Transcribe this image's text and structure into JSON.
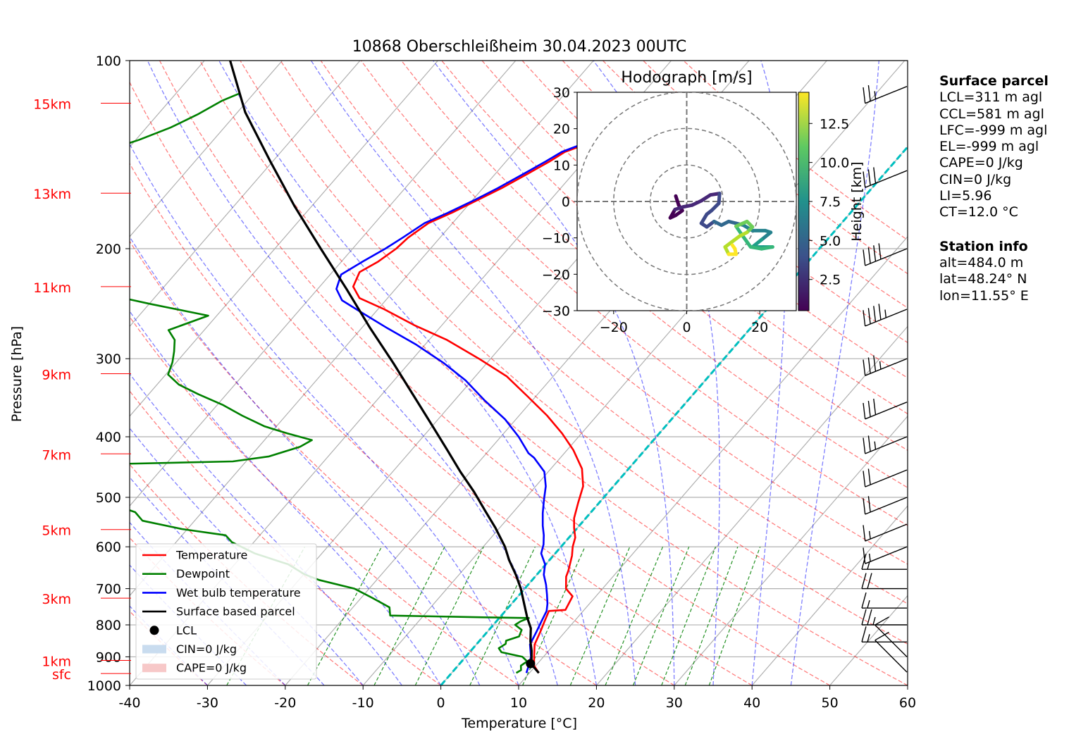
{
  "chart_data": {
    "type": "skew-t",
    "title": "10868 Oberschleißheim 30.04.2023 00UTC",
    "xlabel": "Temperature [°C]",
    "ylabel": "Pressure [hPa]",
    "xlim": [
      -40,
      60
    ],
    "ylim": [
      1000,
      100
    ],
    "x_ticks": [
      -40,
      -30,
      -20,
      -10,
      0,
      10,
      20,
      30,
      40,
      50,
      60
    ],
    "y_ticks": [
      100,
      200,
      300,
      400,
      500,
      600,
      700,
      800,
      900,
      1000
    ],
    "height_labels": [
      {
        "label": "sfc",
        "p": 957
      },
      {
        "label": "1km",
        "p": 912
      },
      {
        "label": "3km",
        "p": 725
      },
      {
        "label": "5km",
        "p": 563
      },
      {
        "label": "7km",
        "p": 426
      },
      {
        "label": "9km",
        "p": 317
      },
      {
        "label": "11km",
        "p": 230
      },
      {
        "label": "13km",
        "p": 163
      },
      {
        "label": "15km",
        "p": 117
      }
    ],
    "grid": true,
    "legend_position": "lower-left",
    "series": [
      {
        "name": "Temperature",
        "color": "#ff0000",
        "points": [
          [
            11.2,
            955
          ],
          [
            9.8,
            930
          ],
          [
            8.8,
            900
          ],
          [
            7.5,
            860
          ],
          [
            6.8,
            820
          ],
          [
            6.2,
            790
          ],
          [
            5.6,
            760
          ],
          [
            7.6,
            757
          ],
          [
            7.0,
            720
          ],
          [
            5.3,
            700
          ],
          [
            4.0,
            670
          ],
          [
            3.6,
            655
          ],
          [
            2.4,
            620
          ],
          [
            1.5,
            600
          ],
          [
            0.8,
            580
          ],
          [
            -0.4,
            560
          ],
          [
            -1.5,
            540
          ],
          [
            -2.7,
            510
          ],
          [
            -3.9,
            480
          ],
          [
            -6.0,
            450
          ],
          [
            -9.2,
            420
          ],
          [
            -12.5,
            395
          ],
          [
            -16.4,
            370
          ],
          [
            -21.0,
            345
          ],
          [
            -26.0,
            320
          ],
          [
            -31.5,
            300
          ],
          [
            -37.7,
            280
          ],
          [
            -43.6,
            265
          ],
          [
            -49.2,
            250
          ],
          [
            -53.6,
            240
          ],
          [
            -55.7,
            230
          ],
          [
            -56.5,
            218
          ],
          [
            -55.3,
            210
          ],
          [
            -54.4,
            200
          ],
          [
            -54.1,
            192
          ],
          [
            -53.1,
            182
          ],
          [
            -51.2,
            175
          ],
          [
            -49.3,
            167
          ],
          [
            -47.6,
            160
          ],
          [
            -45.9,
            152
          ],
          [
            -44.4,
            145
          ],
          [
            -43.5,
            140
          ],
          [
            -41.6,
            136
          ],
          [
            -40.2,
            131
          ],
          [
            -39.9,
            127
          ],
          [
            -39.5,
            122
          ],
          [
            -39.3,
            117
          ]
        ]
      },
      {
        "name": "Dewpoint",
        "color": "#008000",
        "points": [
          [
            8.3,
            955
          ],
          [
            8.6,
            945
          ],
          [
            8.1,
            930
          ],
          [
            8.4,
            915
          ],
          [
            7.3,
            900
          ],
          [
            4.1,
            885
          ],
          [
            3.3,
            872
          ],
          [
            3.7,
            858
          ],
          [
            3.4,
            848
          ],
          [
            4.6,
            835
          ],
          [
            4.2,
            815
          ],
          [
            2.8,
            800
          ],
          [
            3.1,
            790
          ],
          [
            3.8,
            780
          ],
          [
            -2.2,
            778
          ],
          [
            -14.3,
            773
          ],
          [
            -15.3,
            750
          ],
          [
            -18.6,
            724
          ],
          [
            -21.9,
            700
          ],
          [
            -27.4,
            678
          ],
          [
            -29.9,
            664
          ],
          [
            -33.1,
            640
          ],
          [
            -38.6,
            615
          ],
          [
            -42.8,
            590
          ],
          [
            -44.4,
            575
          ],
          [
            -50.7,
            562
          ],
          [
            -56.7,
            545
          ],
          [
            -58.6,
            528
          ],
          [
            -63.2,
            510
          ],
          [
            -68.3,
            495
          ],
          [
            -70.5,
            480
          ],
          [
            -72.6,
            466
          ],
          [
            -73.8,
            455
          ],
          [
            -72.5,
            444
          ],
          [
            -51.7,
            438
          ],
          [
            -47.6,
            430
          ],
          [
            -44.7,
            415
          ],
          [
            -43.9,
            405
          ],
          [
            -47.8,
            395
          ],
          [
            -51.5,
            385
          ],
          [
            -55.6,
            370
          ],
          [
            -59.2,
            356
          ],
          [
            -63.6,
            342
          ],
          [
            -67.2,
            330
          ],
          [
            -69.7,
            318
          ],
          [
            -70.5,
            304
          ],
          [
            -71.5,
            292
          ],
          [
            -72.7,
            280
          ],
          [
            -74.6,
            270
          ],
          [
            -71.1,
            256
          ],
          [
            -80.0,
            245
          ],
          [
            -85.5,
            238
          ],
          [
            -88.8,
            228
          ],
          [
            -91.0,
            220
          ],
          [
            -91.2,
            212
          ],
          [
            -91.1,
            204
          ],
          [
            -92.7,
            196
          ],
          [
            -95.7,
            188
          ],
          [
            -101.6,
            180
          ],
          [
            -106.4,
            174
          ],
          [
            -109.9,
            167
          ],
          [
            -108.9,
            160
          ],
          [
            -108.5,
            153
          ],
          [
            -106.4,
            146
          ],
          [
            -103.0,
            140
          ],
          [
            -99.6,
            134
          ],
          [
            -96.9,
            128
          ],
          [
            -94.9,
            122
          ],
          [
            -93.3,
            116
          ],
          [
            -91.9,
            113
          ]
        ]
      },
      {
        "name": "Wet bulb temperature",
        "color": "#0000ff",
        "points": [
          [
            9.6,
            955
          ],
          [
            9.1,
            930
          ],
          [
            8.4,
            900
          ],
          [
            6.9,
            860
          ],
          [
            6.3,
            820
          ],
          [
            5.8,
            790
          ],
          [
            5.3,
            760
          ],
          [
            4.6,
            740
          ],
          [
            3.5,
            715
          ],
          [
            2.3,
            690
          ],
          [
            0.9,
            665
          ],
          [
            -0.1,
            640
          ],
          [
            -1.8,
            615
          ],
          [
            -2.5,
            595
          ],
          [
            -3.5,
            575
          ],
          [
            -4.7,
            555
          ],
          [
            -6.1,
            530
          ],
          [
            -7.4,
            505
          ],
          [
            -8.7,
            480
          ],
          [
            -10.5,
            455
          ],
          [
            -13.4,
            432
          ],
          [
            -14.6,
            425
          ],
          [
            -17.7,
            400
          ],
          [
            -21.4,
            375
          ],
          [
            -26.1,
            350
          ],
          [
            -30.8,
            325
          ],
          [
            -35.5,
            305
          ],
          [
            -41.1,
            285
          ],
          [
            -46.7,
            268
          ],
          [
            -52.1,
            252
          ],
          [
            -55.6,
            242
          ],
          [
            -57.6,
            232
          ],
          [
            -58.6,
            220
          ],
          [
            -57.3,
            210
          ],
          [
            -55.8,
            200
          ],
          [
            -54.8,
            192
          ],
          [
            -53.6,
            182
          ],
          [
            -51.7,
            175
          ],
          [
            -49.7,
            167
          ],
          [
            -48.1,
            160
          ],
          [
            -46.4,
            152
          ],
          [
            -44.9,
            145
          ],
          [
            -43.9,
            140
          ],
          [
            -42.1,
            136
          ],
          [
            -40.7,
            131
          ],
          [
            -40.5,
            127
          ],
          [
            -40.1,
            122
          ],
          [
            -39.9,
            117
          ]
        ]
      },
      {
        "name": "Surface based parcel",
        "color": "#000000",
        "points": [
          [
            11.2,
            955
          ],
          [
            9.6,
            930
          ],
          [
            8.8,
            910
          ],
          [
            7.8,
            880
          ],
          [
            6.6,
            850
          ],
          [
            5.2,
            810
          ],
          [
            3.6,
            780
          ],
          [
            1.6,
            740
          ],
          [
            -0.5,
            700
          ],
          [
            -2.7,
            665
          ],
          [
            -5.2,
            630
          ],
          [
            -7.2,
            600
          ],
          [
            -10.5,
            560
          ],
          [
            -13.8,
            525
          ],
          [
            -17.3,
            490
          ],
          [
            -21.3,
            455
          ],
          [
            -25.4,
            420
          ],
          [
            -29.9,
            385
          ],
          [
            -35.6,
            345
          ],
          [
            -42.0,
            305
          ],
          [
            -48.9,
            268
          ],
          [
            -56.3,
            232
          ],
          [
            -64.1,
            200
          ],
          [
            -72.2,
            171
          ],
          [
            -80.3,
            145
          ],
          [
            -89.0,
            121
          ],
          [
            -96.7,
            100
          ]
        ]
      }
    ],
    "lcl": {
      "label": "LCL",
      "t": 9.1,
      "p": 923
    },
    "legend": [
      {
        "label": "Temperature",
        "color": "#ff0000",
        "kind": "line"
      },
      {
        "label": "Dewpoint",
        "color": "#008000",
        "kind": "line"
      },
      {
        "label": "Wet bulb temperature",
        "color": "#0000ff",
        "kind": "line"
      },
      {
        "label": "Surface based parcel",
        "color": "#000000",
        "kind": "line"
      },
      {
        "label": "LCL",
        "color": "#000000",
        "kind": "dot"
      },
      {
        "label": "CIN=0 J/kg",
        "color": "#c9dcef",
        "kind": "patch"
      },
      {
        "label": "CAPE=0 J/kg",
        "color": "#f7c8c8",
        "kind": "patch"
      }
    ],
    "wind_barbs": [
      {
        "p": 952,
        "speed_kt": 10,
        "direction": "sw"
      },
      {
        "p": 900,
        "speed_kt": 10,
        "direction": "sw"
      },
      {
        "p": 852,
        "speed_kt": 15,
        "direction": "w"
      },
      {
        "p": 800,
        "speed_kt": 25,
        "direction": "w"
      },
      {
        "p": 752,
        "speed_kt": 15,
        "direction": "w"
      },
      {
        "p": 700,
        "speed_kt": 20,
        "direction": "w"
      },
      {
        "p": 652,
        "speed_kt": 15,
        "direction": "w"
      },
      {
        "p": 600,
        "speed_kt": 15,
        "direction": "wnw"
      },
      {
        "p": 552,
        "speed_kt": 15,
        "direction": "wnw"
      },
      {
        "p": 500,
        "speed_kt": 20,
        "direction": "wnw"
      },
      {
        "p": 452,
        "speed_kt": 20,
        "direction": "wnw"
      },
      {
        "p": 400,
        "speed_kt": 25,
        "direction": "wnw"
      },
      {
        "p": 352,
        "speed_kt": 30,
        "direction": "wnw"
      },
      {
        "p": 300,
        "speed_kt": 35,
        "direction": "wnw"
      },
      {
        "p": 250,
        "speed_kt": 45,
        "direction": "wnw"
      },
      {
        "p": 200,
        "speed_kt": 40,
        "direction": "wnw"
      },
      {
        "p": 150,
        "speed_kt": 30,
        "direction": "wnw"
      },
      {
        "p": 110,
        "speed_kt": 25,
        "direction": "wnw"
      }
    ],
    "hodograph": {
      "title": "Hodograph [m/s]",
      "xlim": [
        -30,
        30
      ],
      "ylim": [
        -30,
        30
      ],
      "ticks": [
        -30,
        -20,
        -10,
        0,
        10,
        20,
        30
      ],
      "x_ticks": [
        -20,
        0,
        20
      ],
      "rings": [
        10,
        20,
        30
      ],
      "colorbar_label": "Height [km]",
      "colorbar_ticks": [
        2.5,
        5.0,
        7.5,
        10.0,
        12.5
      ],
      "colorbar_range": [
        0.5,
        14.5
      ],
      "colormap": "viridis",
      "points": [
        [
          -3.0,
          1.5,
          0.5
        ],
        [
          -2.2,
          -1.0,
          0.8
        ],
        [
          -1.2,
          -2.5,
          1.0
        ],
        [
          -3.0,
          -3.8,
          1.3
        ],
        [
          -4.5,
          -4.5,
          1.5
        ],
        [
          -3.2,
          -2.2,
          1.8
        ],
        [
          -1.0,
          -1.5,
          2.0
        ],
        [
          1.5,
          -1.0,
          2.3
        ],
        [
          4.0,
          0.2,
          2.6
        ],
        [
          6.5,
          1.8,
          2.9
        ],
        [
          9.0,
          2.2,
          3.2
        ],
        [
          8.8,
          -0.5,
          3.5
        ],
        [
          6.8,
          -2.5,
          3.7
        ],
        [
          5.5,
          -3.5,
          3.9
        ],
        [
          4.0,
          -6.0,
          4.1
        ],
        [
          5.5,
          -7.0,
          4.4
        ],
        [
          7.5,
          -5.5,
          4.7
        ],
        [
          9.5,
          -6.5,
          5.0
        ],
        [
          11.5,
          -5.5,
          5.3
        ],
        [
          13.5,
          -6.0,
          5.6
        ],
        [
          15.5,
          -6.5,
          5.9
        ],
        [
          18.0,
          -8.0,
          6.2
        ],
        [
          21.5,
          -8.0,
          6.6
        ],
        [
          23.0,
          -8.5,
          7.0
        ],
        [
          20.5,
          -10.5,
          7.4
        ],
        [
          18.0,
          -12.5,
          7.8
        ],
        [
          21.0,
          -12.5,
          8.2
        ],
        [
          23.5,
          -12.5,
          8.6
        ],
        [
          20.5,
          -13.0,
          9.0
        ],
        [
          17.5,
          -12.5,
          9.4
        ],
        [
          15.0,
          -9.0,
          9.8
        ],
        [
          13.5,
          -6.8,
          10.2
        ],
        [
          16.5,
          -5.5,
          10.6
        ],
        [
          18.0,
          -7.0,
          11.0
        ],
        [
          16.5,
          -8.5,
          11.4
        ],
        [
          14.5,
          -9.5,
          11.8
        ],
        [
          12.5,
          -11.0,
          12.2
        ],
        [
          10.5,
          -12.5,
          12.6
        ],
        [
          11.5,
          -14.5,
          13.0
        ],
        [
          13.5,
          -14.5,
          13.4
        ],
        [
          13.2,
          -13.0,
          13.8
        ],
        [
          12.5,
          -12.0,
          14.2
        ]
      ]
    }
  },
  "sidebar": {
    "parcel_title": "Surface parcel",
    "parcel_lines": [
      "LCL=311 m agl",
      "CCL=581 m agl",
      "LFC=-999 m agl",
      "EL=-999 m agl",
      "CAPE=0 J/kg",
      "CIN=0 J/kg",
      "LI=5.96",
      "CT=12.0 °C"
    ],
    "station_title": "Station info",
    "station_lines": [
      "alt=484.0 m",
      "lat=48.24° N",
      "lon=11.55° E"
    ]
  }
}
